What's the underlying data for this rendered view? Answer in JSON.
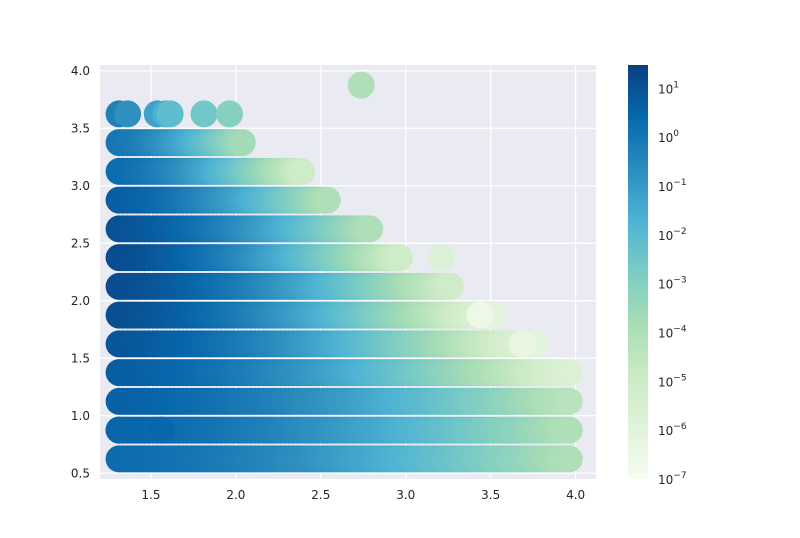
{
  "chart_data": {
    "type": "scatter",
    "title": "",
    "xlabel": "",
    "ylabel": "",
    "xlim": [
      1.2,
      4.12
    ],
    "ylim": [
      0.45,
      4.05
    ],
    "x_ticks": [
      1.5,
      2.0,
      2.5,
      3.0,
      3.5,
      4.0
    ],
    "x_tick_labels": [
      "1.5",
      "2.0",
      "2.5",
      "3.0",
      "3.5",
      "4.0"
    ],
    "y_ticks": [
      0.5,
      1.0,
      1.5,
      2.0,
      2.5,
      3.0,
      3.5,
      4.0
    ],
    "y_tick_labels": [
      "0.5",
      "1.0",
      "1.5",
      "2.0",
      "2.5",
      "3.0",
      "3.5",
      "4.0"
    ],
    "grid": true,
    "style": "seaborn-darkgrid",
    "color_map": "GnBu",
    "color_scale": "log",
    "color_range": [
      1e-07,
      30
    ],
    "colorbar": {
      "position": "right",
      "ticks": [
        {
          "value": 10.0,
          "base": "10",
          "exp": "1"
        },
        {
          "value": 1.0,
          "base": "10",
          "exp": "0"
        },
        {
          "value": 0.1,
          "base": "10",
          "exp": "−1"
        },
        {
          "value": 0.01,
          "base": "10",
          "exp": "−2"
        },
        {
          "value": 0.001,
          "base": "10",
          "exp": "−3"
        },
        {
          "value": 0.0001,
          "base": "10",
          "exp": "−4"
        },
        {
          "value": 1e-05,
          "base": "10",
          "exp": "−5"
        },
        {
          "value": 1e-06,
          "base": "10",
          "exp": "−6"
        },
        {
          "value": 1e-07,
          "base": "10",
          "exp": "−7"
        }
      ]
    },
    "rows": [
      {
        "y": 0.625,
        "x_start": 1.3125,
        "x_end": 3.9625,
        "color_start": 2.0,
        "color_end": 0.0001,
        "sparse": []
      },
      {
        "y": 0.875,
        "x_start": 1.3125,
        "x_end": 3.9625,
        "color_start": 3.0,
        "color_end": 0.0001,
        "sparse": [
          1.3125,
          1.5625
        ]
      },
      {
        "y": 1.125,
        "x_start": 1.3125,
        "x_end": 3.9625,
        "color_start": 4.0,
        "color_end": 5e-05,
        "sparse": []
      },
      {
        "y": 1.375,
        "x_start": 1.3125,
        "x_end": 3.9625,
        "color_start": 5.0,
        "color_end": 2e-06,
        "sparse": []
      },
      {
        "y": 1.625,
        "x_start": 1.3125,
        "x_end": 3.7625,
        "color_start": 8.0,
        "color_end": 1e-06,
        "sparse": []
      },
      {
        "y": 1.875,
        "x_start": 1.3125,
        "x_end": 3.5125,
        "color_start": 12.0,
        "color_end": 1e-06,
        "sparse": []
      },
      {
        "y": 2.125,
        "x_start": 1.3125,
        "x_end": 3.2625,
        "color_start": 14.0,
        "color_end": 1e-05,
        "sparse": []
      },
      {
        "y": 2.375,
        "x_start": 1.3125,
        "x_end": 2.9625,
        "color_start": 14.0,
        "color_end": 1e-05,
        "sparse": []
      },
      {
        "y": 2.625,
        "x_start": 1.3125,
        "x_end": 2.7875,
        "color_start": 10.0,
        "color_end": 0.0001,
        "sparse": []
      },
      {
        "y": 2.875,
        "x_start": 1.3125,
        "x_end": 2.5375,
        "color_start": 5.0,
        "color_end": 0.0001,
        "sparse": []
      },
      {
        "y": 3.125,
        "x_start": 1.3125,
        "x_end": 2.3875,
        "color_start": 2.0,
        "color_end": 1e-05,
        "sparse": []
      },
      {
        "y": 3.375,
        "x_start": 1.3125,
        "x_end": 2.0375,
        "color_start": 1.0,
        "color_end": 0.0002,
        "sparse": []
      },
      {
        "y": 3.625,
        "x_start": 1.3125,
        "x_end": 1.9875,
        "color_start": 0.5,
        "color_end": 0.001,
        "sparse": [
          1.3125,
          1.3625,
          1.5375,
          1.5875,
          1.6125,
          1.8125,
          1.9625
        ]
      },
      {
        "y": 3.875,
        "x_start": 2.7375,
        "x_end": 2.7375,
        "color_start": 0.0001,
        "color_end": 0.0001,
        "sparse": [
          2.7375
        ]
      }
    ],
    "extra_points": [
      {
        "x": 3.2125,
        "y": 2.375,
        "c": 2e-06
      },
      {
        "x": 3.4375,
        "y": 1.875,
        "c": 3e-07
      },
      {
        "x": 3.6875,
        "y": 1.625,
        "c": 5e-07
      }
    ]
  }
}
